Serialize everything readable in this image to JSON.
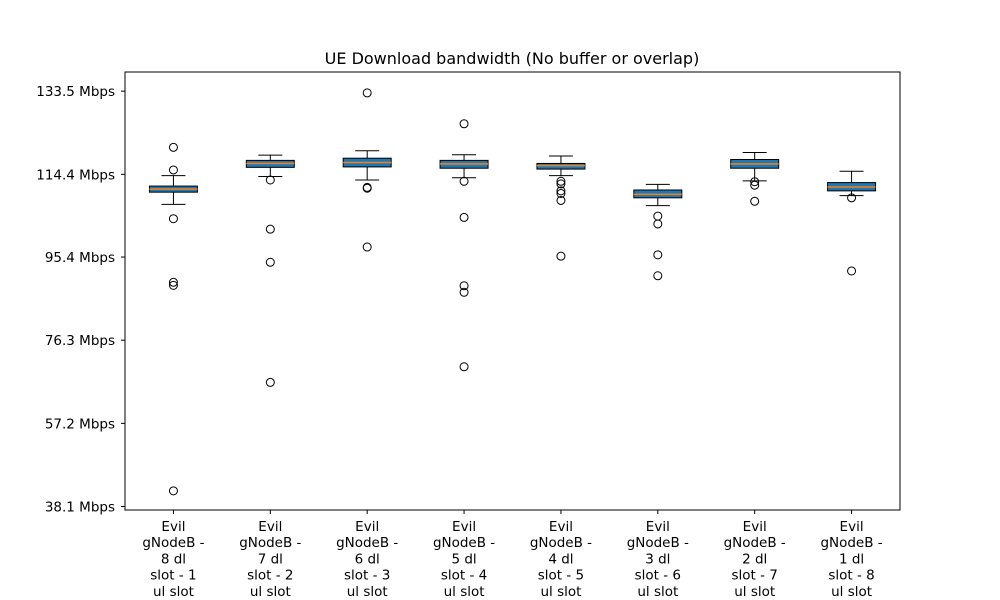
{
  "chart_data": {
    "type": "boxplot",
    "title": "UE Download bandwidth (No buffer or overlap)",
    "xlabel": "",
    "ylabel": "",
    "ylim": [
      37.3,
      137.9
    ],
    "yticks": [
      {
        "value": 38.1,
        "label": "38.1 Mbps"
      },
      {
        "value": 57.2,
        "label": "57.2 Mbps"
      },
      {
        "value": 76.3,
        "label": "76.3 Mbps"
      },
      {
        "value": 95.4,
        "label": "95.4 Mbps"
      },
      {
        "value": 114.4,
        "label": "114.4 Mbps"
      },
      {
        "value": 133.5,
        "label": "133.5 Mbps"
      }
    ],
    "categories": [
      [
        "Evil",
        "gNodeB -",
        "8 dl",
        "slot - 1",
        "ul slot"
      ],
      [
        "Evil",
        "gNodeB -",
        "7 dl",
        "slot - 2",
        "ul slot"
      ],
      [
        "Evil",
        "gNodeB -",
        "6 dl",
        "slot - 3",
        "ul slot"
      ],
      [
        "Evil",
        "gNodeB -",
        "5 dl",
        "slot - 4",
        "ul slot"
      ],
      [
        "Evil",
        "gNodeB -",
        "4 dl",
        "slot - 5",
        "ul slot"
      ],
      [
        "Evil",
        "gNodeB -",
        "3 dl",
        "slot - 6",
        "ul slot"
      ],
      [
        "Evil",
        "gNodeB -",
        "2 dl",
        "slot - 7",
        "ul slot"
      ],
      [
        "Evil",
        "gNodeB -",
        "1 dl",
        "slot - 8",
        "ul slot"
      ]
    ],
    "boxes": [
      {
        "whisker_low": 107.5,
        "q1": 110.3,
        "median": 111.0,
        "q3": 111.7,
        "whisker_high": 114.1,
        "outliers": [
          120.6,
          115.4,
          104.2,
          89.6,
          88.9,
          41.7
        ]
      },
      {
        "whisker_low": 113.9,
        "q1": 116.0,
        "median": 116.9,
        "q3": 117.6,
        "whisker_high": 118.8,
        "outliers": [
          113.1,
          101.8,
          94.2,
          66.6
        ]
      },
      {
        "whisker_low": 113.1,
        "q1": 116.1,
        "median": 117.1,
        "q3": 118.1,
        "whisker_high": 119.8,
        "outliers": [
          133.1,
          111.4,
          111.2,
          97.7
        ]
      },
      {
        "whisker_low": 113.6,
        "q1": 115.8,
        "median": 116.8,
        "q3": 117.6,
        "whisker_high": 118.9,
        "outliers": [
          126.0,
          112.8,
          104.5,
          88.8,
          87.3,
          70.2
        ]
      },
      {
        "whisker_low": 114.1,
        "q1": 115.6,
        "median": 116.4,
        "q3": 116.9,
        "whisker_high": 118.6,
        "outliers": [
          112.8,
          112.2,
          110.6,
          110.0,
          108.4,
          95.6
        ]
      },
      {
        "whisker_low": 107.2,
        "q1": 109.0,
        "median": 109.8,
        "q3": 110.8,
        "whisker_high": 112.1,
        "outliers": [
          104.8,
          103.0,
          95.9,
          91.1
        ]
      },
      {
        "whisker_low": 112.9,
        "q1": 115.8,
        "median": 116.8,
        "q3": 117.8,
        "whisker_high": 119.4,
        "outliers": [
          112.7,
          111.9,
          108.2
        ]
      },
      {
        "whisker_low": 109.5,
        "q1": 110.6,
        "median": 111.5,
        "q3": 112.5,
        "whisker_high": 115.1,
        "outliers": [
          109.0,
          92.2
        ]
      }
    ],
    "colors": {
      "box_fill": "#1f77b4",
      "median": "#ff7f0e",
      "stroke": "#000000"
    },
    "grid": false,
    "legend": "none"
  }
}
